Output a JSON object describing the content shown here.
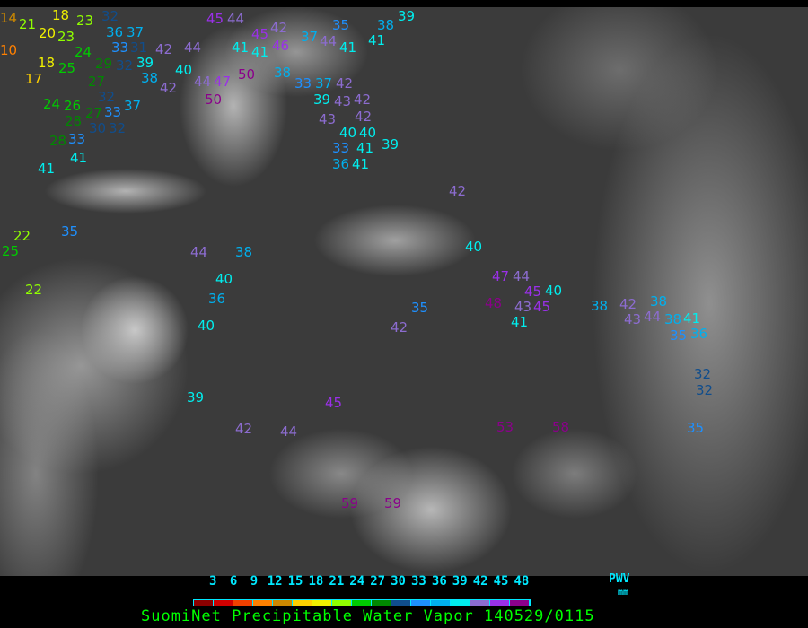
{
  "title": "SuomiNet Precipitable Water Vapor 140529/0115",
  "legend": {
    "unit_label": "PWV",
    "unit": "mm",
    "ticks": [
      "3",
      "6",
      "9",
      "12",
      "15",
      "18",
      "21",
      "24",
      "27",
      "30",
      "33",
      "36",
      "39",
      "42",
      "45",
      "48"
    ],
    "colors": [
      "#8b0000",
      "#d00000",
      "#f04000",
      "#ff8000",
      "#cc8800",
      "#ffd000",
      "#f0f000",
      "#90ff00",
      "#00cc00",
      "#008800",
      "#104d8c",
      "#1e90ff",
      "#00b0ee",
      "#00eeee",
      "#8c6cd0",
      "#9a30e8",
      "#8b008b"
    ]
  },
  "map": {
    "coastline_color": "#ffff00",
    "stations": [
      "14",
      "21",
      "18",
      "23",
      "32",
      "20",
      "23",
      "36",
      "33",
      "37",
      "24",
      "31",
      "39",
      "42",
      "44",
      "10",
      "18",
      "29",
      "32",
      "38",
      "40",
      "17",
      "25",
      "27",
      "32",
      "42",
      "44",
      "47",
      "50",
      "24",
      "26",
      "27",
      "37",
      "33",
      "28",
      "30",
      "33",
      "32",
      "28",
      "50",
      "41",
      "41",
      "45",
      "44",
      "45",
      "42",
      "41",
      "41",
      "46",
      "35",
      "37",
      "44",
      "41",
      "38",
      "39",
      "41",
      "38",
      "33",
      "37",
      "39",
      "42",
      "43",
      "42",
      "42",
      "43",
      "40",
      "40",
      "41",
      "33",
      "36",
      "41",
      "39",
      "42",
      "40",
      "47",
      "44",
      "45",
      "48",
      "43",
      "41",
      "45",
      "40",
      "42",
      "35",
      "38",
      "42",
      "43",
      "44",
      "38",
      "38",
      "41",
      "35",
      "36",
      "32",
      "32",
      "35",
      "53",
      "58",
      "59",
      "59",
      "45",
      "42",
      "44",
      "39",
      "40",
      "36",
      "40",
      "38",
      "44",
      "35",
      "22",
      "25",
      "22"
    ]
  }
}
